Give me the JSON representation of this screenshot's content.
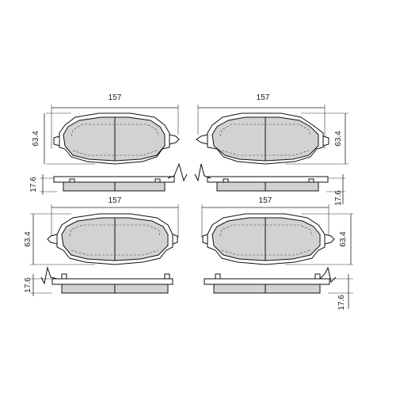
{
  "views": [
    {
      "id": "top-left",
      "width_label": "157",
      "height_label": "63.4",
      "thickness_label": "17.6"
    },
    {
      "id": "top-right",
      "width_label": "157",
      "height_label": "63.4",
      "thickness_label": "17.6"
    },
    {
      "id": "bottom-left",
      "width_label": "157",
      "height_label": "63.4",
      "thickness_label": "17.6"
    },
    {
      "id": "bottom-right",
      "width_label": "157",
      "height_label": "63.4",
      "thickness_label": "17.6"
    }
  ],
  "colors": {
    "friction_material": "#d2d2d2",
    "outline": "#111111"
  }
}
